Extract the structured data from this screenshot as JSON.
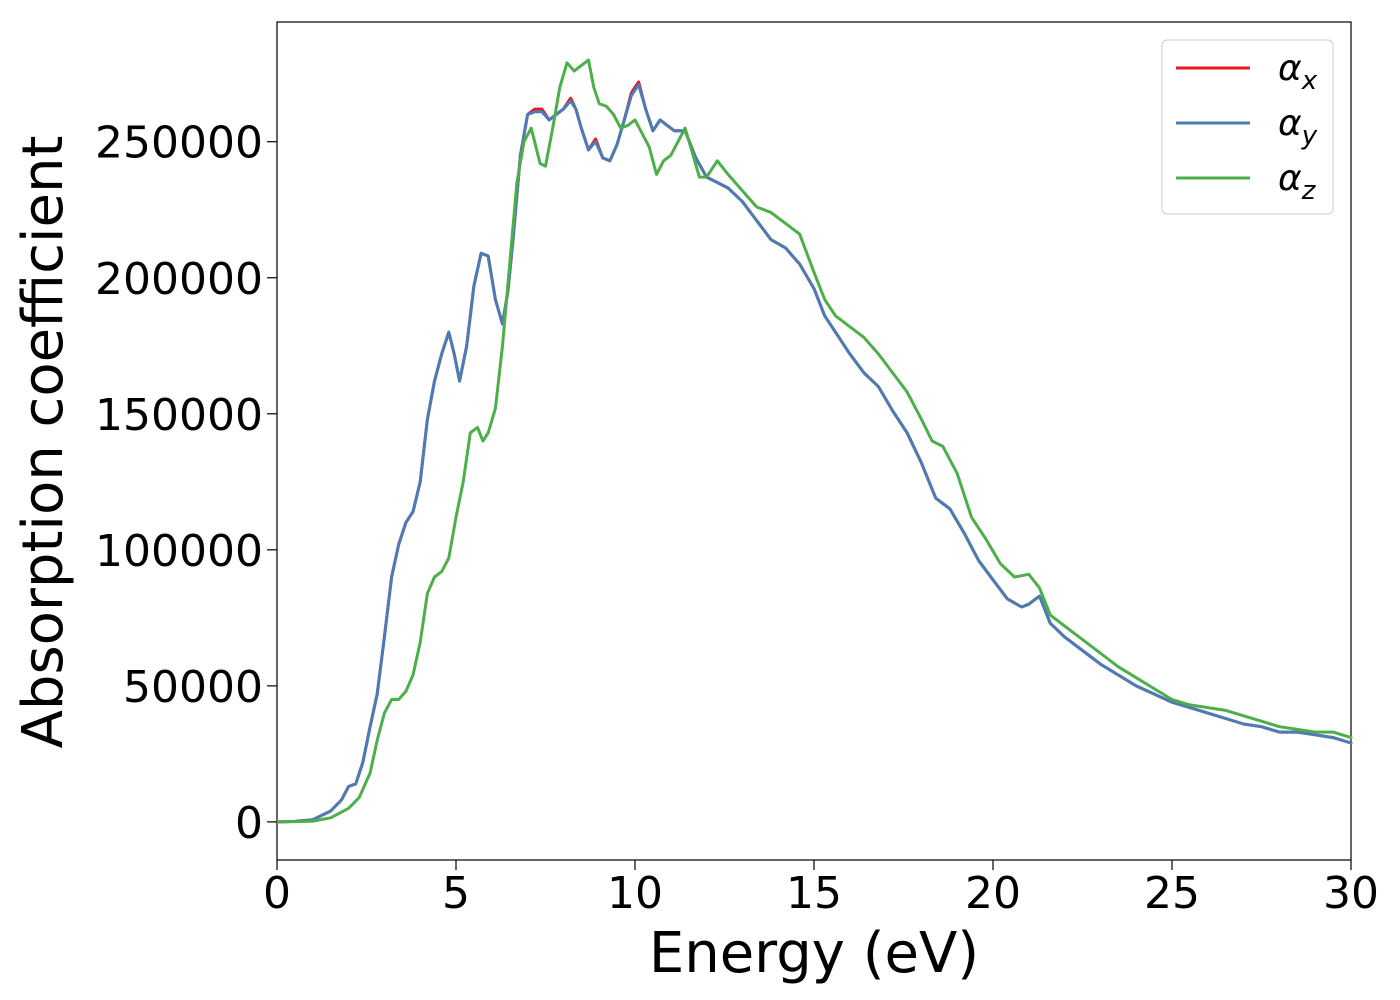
{
  "chart_data": {
    "type": "line",
    "xlabel": "Energy (eV)",
    "ylabel": "Absorption coefficient",
    "xlim": [
      0,
      30
    ],
    "ylim": [
      -14000,
      294000
    ],
    "xticks": [
      0,
      5,
      10,
      15,
      20,
      25,
      30
    ],
    "xtick_labels": [
      "0",
      "5",
      "10",
      "15",
      "20",
      "25",
      "30"
    ],
    "yticks": [
      0,
      50000,
      100000,
      150000,
      200000,
      250000
    ],
    "ytick_labels": [
      "0",
      "50000",
      "100000",
      "150000",
      "200000",
      "250000"
    ],
    "grid": false,
    "legend_position": "top-right",
    "series": [
      {
        "name": "α_x",
        "label_base": "α",
        "label_sub": "x",
        "color": "#e41a1c",
        "x": [
          0,
          0.5,
          1.0,
          1.5,
          1.8,
          2.0,
          2.2,
          2.4,
          2.6,
          2.8,
          3.0,
          3.2,
          3.4,
          3.6,
          3.8,
          4.0,
          4.2,
          4.4,
          4.6,
          4.8,
          4.95,
          5.1,
          5.3,
          5.5,
          5.7,
          5.9,
          6.1,
          6.3,
          6.45,
          6.6,
          6.8,
          7.0,
          7.2,
          7.4,
          7.6,
          7.8,
          8.0,
          8.2,
          8.35,
          8.5,
          8.7,
          8.9,
          9.1,
          9.3,
          9.5,
          9.7,
          9.9,
          10.1,
          10.3,
          10.5,
          10.7,
          10.9,
          11.1,
          11.4,
          11.7,
          12.0,
          12.3,
          12.6,
          13.0,
          13.4,
          13.8,
          14.2,
          14.6,
          15.0,
          15.3,
          15.6,
          16.0,
          16.4,
          16.8,
          17.2,
          17.6,
          18.0,
          18.4,
          18.8,
          19.2,
          19.6,
          20.0,
          20.4,
          20.8,
          21.0,
          21.3,
          21.6,
          22.0,
          22.5,
          23.0,
          23.5,
          24.0,
          24.5,
          25.0,
          25.5,
          26.0,
          26.5,
          27.0,
          27.5,
          28.0,
          28.5,
          29.0,
          29.5,
          30.0
        ],
        "y": [
          0,
          200,
          800,
          4000,
          8000,
          13000,
          14000,
          22000,
          35000,
          47000,
          68000,
          90000,
          102000,
          110000,
          114000,
          125000,
          148000,
          162000,
          172000,
          180000,
          172000,
          162000,
          175000,
          197000,
          209000,
          208000,
          192000,
          183000,
          195000,
          215000,
          245000,
          260000,
          262000,
          262000,
          258000,
          260000,
          262000,
          266000,
          262000,
          255000,
          247000,
          251000,
          244000,
          243000,
          249000,
          258000,
          268000,
          272000,
          262000,
          254000,
          258000,
          256000,
          254000,
          254000,
          244000,
          237000,
          235000,
          233000,
          228000,
          221000,
          214000,
          211000,
          205000,
          196000,
          186000,
          180000,
          172000,
          165000,
          160000,
          151000,
          143000,
          132000,
          119000,
          115000,
          106000,
          96000,
          89000,
          82000,
          79000,
          80000,
          83000,
          73000,
          68000,
          63000,
          58000,
          54000,
          50000,
          47000,
          44000,
          42000,
          40000,
          38000,
          36000,
          35000,
          33000,
          33000,
          32000,
          31000,
          29000
        ]
      },
      {
        "name": "α_y",
        "label_base": "α",
        "label_sub": "y",
        "color": "#4a7db5",
        "x": [
          0,
          0.5,
          1.0,
          1.5,
          1.8,
          2.0,
          2.2,
          2.4,
          2.6,
          2.8,
          3.0,
          3.2,
          3.4,
          3.6,
          3.8,
          4.0,
          4.2,
          4.4,
          4.6,
          4.8,
          4.95,
          5.1,
          5.3,
          5.5,
          5.7,
          5.9,
          6.1,
          6.3,
          6.45,
          6.6,
          6.8,
          7.0,
          7.2,
          7.4,
          7.6,
          7.8,
          8.0,
          8.2,
          8.35,
          8.5,
          8.7,
          8.9,
          9.1,
          9.3,
          9.5,
          9.7,
          9.9,
          10.1,
          10.3,
          10.5,
          10.7,
          10.9,
          11.1,
          11.4,
          11.7,
          12.0,
          12.3,
          12.6,
          13.0,
          13.4,
          13.8,
          14.2,
          14.6,
          15.0,
          15.3,
          15.6,
          16.0,
          16.4,
          16.8,
          17.2,
          17.6,
          18.0,
          18.4,
          18.8,
          19.2,
          19.6,
          20.0,
          20.4,
          20.8,
          21.0,
          21.3,
          21.6,
          22.0,
          22.5,
          23.0,
          23.5,
          24.0,
          24.5,
          25.0,
          25.5,
          26.0,
          26.5,
          27.0,
          27.5,
          28.0,
          28.5,
          29.0,
          29.5,
          30.0
        ],
        "y": [
          0,
          200,
          800,
          4000,
          8000,
          13000,
          14000,
          22000,
          35000,
          47000,
          68000,
          90000,
          102000,
          110000,
          114000,
          125000,
          148000,
          162000,
          172000,
          180000,
          172000,
          162000,
          175000,
          197000,
          209000,
          208000,
          192000,
          183000,
          195000,
          215000,
          245000,
          260000,
          261000,
          261000,
          258000,
          260000,
          262000,
          265000,
          262000,
          255000,
          247000,
          250000,
          244000,
          243000,
          249000,
          258000,
          267000,
          271000,
          262000,
          254000,
          258000,
          256000,
          254000,
          254000,
          244000,
          237000,
          235000,
          233000,
          228000,
          221000,
          214000,
          211000,
          205000,
          196000,
          186000,
          180000,
          172000,
          165000,
          160000,
          151000,
          143000,
          132000,
          119000,
          115000,
          106000,
          96000,
          89000,
          82000,
          79000,
          80000,
          83000,
          73000,
          68000,
          63000,
          58000,
          54000,
          50000,
          47000,
          44000,
          42000,
          40000,
          38000,
          36000,
          35000,
          33000,
          33000,
          32000,
          31000,
          29000
        ]
      },
      {
        "name": "α_z",
        "label_base": "α",
        "label_sub": "z",
        "color": "#4daf4a",
        "x": [
          0,
          0.5,
          1.0,
          1.5,
          2.0,
          2.3,
          2.6,
          2.8,
          3.0,
          3.2,
          3.4,
          3.6,
          3.8,
          4.0,
          4.2,
          4.4,
          4.6,
          4.8,
          5.0,
          5.2,
          5.4,
          5.6,
          5.75,
          5.9,
          6.1,
          6.3,
          6.5,
          6.7,
          6.9,
          7.1,
          7.35,
          7.5,
          7.7,
          7.9,
          8.1,
          8.3,
          8.5,
          8.7,
          8.85,
          9.0,
          9.2,
          9.4,
          9.6,
          9.8,
          10.0,
          10.2,
          10.4,
          10.6,
          10.8,
          11.0,
          11.2,
          11.4,
          11.6,
          11.8,
          12.0,
          12.3,
          12.6,
          13.0,
          13.4,
          13.8,
          14.2,
          14.6,
          15.0,
          15.3,
          15.6,
          16.0,
          16.4,
          16.8,
          17.2,
          17.6,
          18.0,
          18.3,
          18.6,
          19.0,
          19.4,
          19.8,
          20.2,
          20.6,
          21.0,
          21.3,
          21.6,
          22.0,
          22.5,
          23.0,
          23.5,
          24.0,
          24.5,
          25.0,
          25.5,
          26.0,
          26.5,
          27.0,
          27.5,
          28.0,
          28.5,
          29.0,
          29.5,
          30.0
        ],
        "y": [
          0,
          100,
          300,
          1500,
          5000,
          9000,
          18000,
          30000,
          40000,
          45000,
          45000,
          48000,
          54000,
          66000,
          84000,
          90000,
          92000,
          97000,
          112000,
          125000,
          143000,
          145000,
          140000,
          143000,
          152000,
          175000,
          205000,
          235000,
          250000,
          255000,
          242000,
          241000,
          255000,
          270000,
          279000,
          276000,
          278000,
          280000,
          270000,
          264000,
          263000,
          260000,
          255000,
          256000,
          258000,
          253000,
          248000,
          238000,
          243000,
          245000,
          250000,
          255000,
          246000,
          237000,
          237000,
          243000,
          238000,
          232000,
          226000,
          224000,
          220000,
          216000,
          202000,
          192000,
          186000,
          182000,
          178000,
          172000,
          165000,
          158000,
          148000,
          140000,
          138000,
          128000,
          112000,
          104000,
          95000,
          90000,
          91000,
          86000,
          76000,
          72000,
          67000,
          62000,
          57000,
          53000,
          49000,
          45000,
          43000,
          42000,
          41000,
          39000,
          37000,
          35000,
          34000,
          33000,
          33000,
          31000
        ]
      }
    ]
  }
}
